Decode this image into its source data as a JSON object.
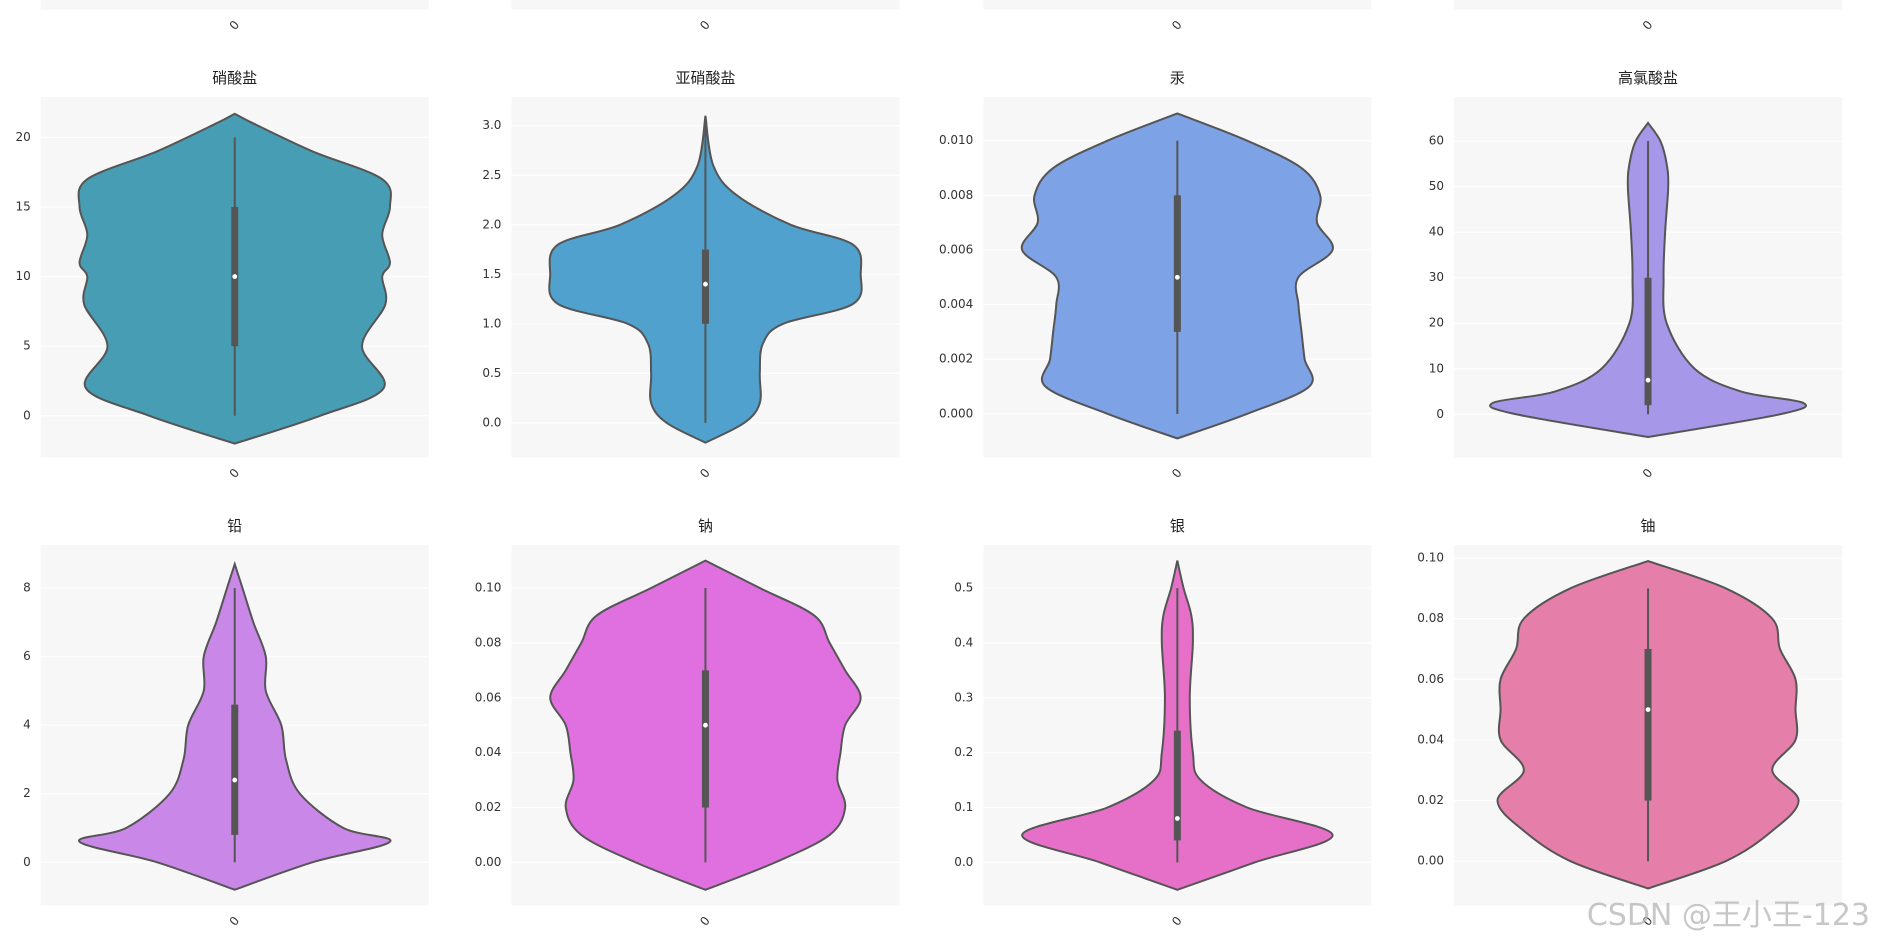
{
  "chart_data": [
    {
      "type": "violin",
      "categories": [
        "0"
      ]
    },
    {
      "type": "violin",
      "categories": [
        "0"
      ]
    },
    {
      "type": "violin",
      "categories": [
        "0"
      ]
    },
    {
      "type": "violin",
      "categories": [
        "0"
      ]
    },
    {
      "type": "violin",
      "title": "硝酸盐",
      "categories": [
        "0"
      ],
      "color": "#479eb4",
      "grid": true,
      "ylim": [
        -3.0,
        22.9
      ],
      "yticks": [
        0,
        5,
        10,
        15,
        20
      ],
      "box": {
        "whisker_low": 0,
        "q1": 5,
        "median": 10,
        "q3": 15,
        "whisker_high": 20
      },
      "violin": {
        "y": [
          -2,
          0,
          2,
          5,
          8,
          10,
          11,
          13,
          15,
          17,
          19,
          21,
          21.7
        ],
        "density": [
          0,
          0.55,
          0.96,
          0.82,
          0.97,
          0.95,
          1.0,
          0.95,
          1.0,
          0.95,
          0.5,
          0.12,
          0
        ]
      }
    },
    {
      "type": "violin",
      "title": "亚硝酸盐",
      "categories": [
        "0"
      ],
      "color": "#50a1cd",
      "grid": true,
      "ylim": [
        -0.35,
        3.29
      ],
      "yticks": [
        {
          "value": 0,
          "label": "0.0"
        },
        {
          "value": 0.5,
          "label": "0.5"
        },
        {
          "value": 1,
          "label": "1.0"
        },
        {
          "value": 1.5,
          "label": "1.5"
        },
        {
          "value": 2,
          "label": "2.0"
        },
        {
          "value": 2.5,
          "label": "2.5"
        },
        {
          "value": 3,
          "label": "3.0"
        }
      ],
      "box": {
        "whisker_low": 0,
        "q1": 1.0,
        "median": 1.4,
        "q3": 1.75,
        "whisker_high": 3.0
      },
      "violin": {
        "y": [
          -0.2,
          0,
          0.2,
          0.5,
          0.8,
          1.0,
          1.2,
          1.5,
          1.8,
          2.0,
          2.3,
          2.6,
          3.1
        ],
        "density": [
          0,
          0.25,
          0.35,
          0.35,
          0.37,
          0.5,
          0.95,
          1.0,
          0.95,
          0.55,
          0.2,
          0.05,
          0
        ]
      }
    },
    {
      "type": "violin",
      "title": "汞",
      "categories": [
        "0"
      ],
      "color": "#7ea2e6",
      "grid": true,
      "ylim": [
        -0.0016,
        0.0116
      ],
      "yticks": [
        {
          "value": 0,
          "label": "0.000"
        },
        {
          "value": 0.002,
          "label": "0.002"
        },
        {
          "value": 0.004,
          "label": "0.004"
        },
        {
          "value": 0.006,
          "label": "0.006"
        },
        {
          "value": 0.008,
          "label": "0.008"
        },
        {
          "value": 0.01,
          "label": "0.010"
        }
      ],
      "box": {
        "whisker_low": 0,
        "q1": 0.003,
        "median": 0.005,
        "q3": 0.008,
        "whisker_high": 0.01
      },
      "violin": {
        "y": [
          -0.0009,
          0,
          0.001,
          0.002,
          0.003,
          0.004,
          0.005,
          0.006,
          0.007,
          0.008,
          0.009,
          0.01,
          0.011
        ],
        "density": [
          0,
          0.45,
          0.85,
          0.82,
          0.8,
          0.78,
          0.78,
          1.0,
          0.9,
          0.92,
          0.8,
          0.45,
          0
        ]
      }
    },
    {
      "type": "violin",
      "title": "高氯酸盐",
      "categories": [
        "0"
      ],
      "color": "#a697e8",
      "grid": true,
      "ylim": [
        -9.5,
        69.7
      ],
      "yticks": [
        0,
        10,
        20,
        30,
        40,
        50,
        60
      ],
      "box": {
        "whisker_low": 0,
        "q1": 2,
        "median": 7.5,
        "q3": 30,
        "whisker_high": 60
      },
      "violin": {
        "y": [
          -5,
          0,
          2.5,
          5,
          10,
          20,
          30,
          40,
          50,
          55,
          60,
          64
        ],
        "density": [
          0,
          0.85,
          1.0,
          0.6,
          0.3,
          0.12,
          0.1,
          0.11,
          0.13,
          0.12,
          0.08,
          0
        ]
      }
    },
    {
      "type": "violin",
      "title": "铅",
      "categories": [
        "0"
      ],
      "color": "#c987e8",
      "grid": true,
      "ylim": [
        -1.26,
        9.26
      ],
      "yticks": [
        0,
        2,
        4,
        6,
        8
      ],
      "box": {
        "whisker_low": 0,
        "q1": 0.8,
        "median": 2.4,
        "q3": 4.6,
        "whisker_high": 8
      },
      "violin": {
        "y": [
          -0.8,
          0,
          0.6,
          1,
          2,
          3,
          4,
          5,
          6,
          7,
          8,
          8.7
        ],
        "density": [
          0,
          0.5,
          1.0,
          0.7,
          0.42,
          0.33,
          0.3,
          0.2,
          0.2,
          0.12,
          0.05,
          0
        ]
      }
    },
    {
      "type": "violin",
      "title": "钠",
      "categories": [
        "0"
      ],
      "color": "#e070e0",
      "grid": true,
      "ylim": [
        -0.0157,
        0.1157
      ],
      "yticks": [
        {
          "value": 0,
          "label": "0.00"
        },
        {
          "value": 0.02,
          "label": "0.02"
        },
        {
          "value": 0.04,
          "label": "0.04"
        },
        {
          "value": 0.06,
          "label": "0.06"
        },
        {
          "value": 0.08,
          "label": "0.08"
        },
        {
          "value": 0.1,
          "label": "0.10"
        }
      ],
      "box": {
        "whisker_low": 0,
        "q1": 0.02,
        "median": 0.05,
        "q3": 0.07,
        "whisker_high": 0.1
      },
      "violin": {
        "y": [
          -0.01,
          0,
          0.01,
          0.02,
          0.03,
          0.04,
          0.05,
          0.06,
          0.07,
          0.08,
          0.09,
          0.1,
          0.11
        ],
        "density": [
          0,
          0.45,
          0.8,
          0.9,
          0.85,
          0.87,
          0.9,
          1.0,
          0.9,
          0.8,
          0.7,
          0.35,
          0
        ]
      }
    },
    {
      "type": "violin",
      "title": "银",
      "categories": [
        "0"
      ],
      "color": "#e670c8",
      "grid": true,
      "ylim": [
        -0.0786,
        0.5786
      ],
      "yticks": [
        {
          "value": 0,
          "label": "0.0"
        },
        0.1,
        0.2,
        0.3,
        0.4,
        0.5
      ],
      "box": {
        "whisker_low": 0,
        "q1": 0.04,
        "median": 0.08,
        "q3": 0.24,
        "whisker_high": 0.5
      },
      "violin": {
        "y": [
          -0.05,
          0,
          0.05,
          0.1,
          0.15,
          0.2,
          0.3,
          0.4,
          0.45,
          0.5,
          0.55
        ],
        "density": [
          0,
          0.5,
          1.0,
          0.45,
          0.15,
          0.1,
          0.08,
          0.1,
          0.09,
          0.04,
          0
        ]
      }
    },
    {
      "type": "violin",
      "title": "铀",
      "categories": [
        "0"
      ],
      "color": "#e67eaa",
      "grid": true,
      "ylim": [
        -0.0146,
        0.1043
      ],
      "yticks": [
        {
          "value": 0,
          "label": "0.00"
        },
        0.02,
        0.04,
        0.06,
        0.08,
        {
          "value": 0.1,
          "label": "0.10"
        }
      ],
      "box": {
        "whisker_low": 0,
        "q1": 0.02,
        "median": 0.05,
        "q3": 0.07,
        "whisker_high": 0.09
      },
      "violin": {
        "y": [
          -0.009,
          0,
          0.01,
          0.02,
          0.03,
          0.04,
          0.05,
          0.06,
          0.07,
          0.08,
          0.09,
          0.099
        ],
        "density": [
          0,
          0.5,
          0.8,
          0.97,
          0.8,
          0.95,
          0.95,
          0.95,
          0.85,
          0.8,
          0.5,
          0
        ]
      }
    }
  ],
  "watermark": "CSDN @王小王-123"
}
